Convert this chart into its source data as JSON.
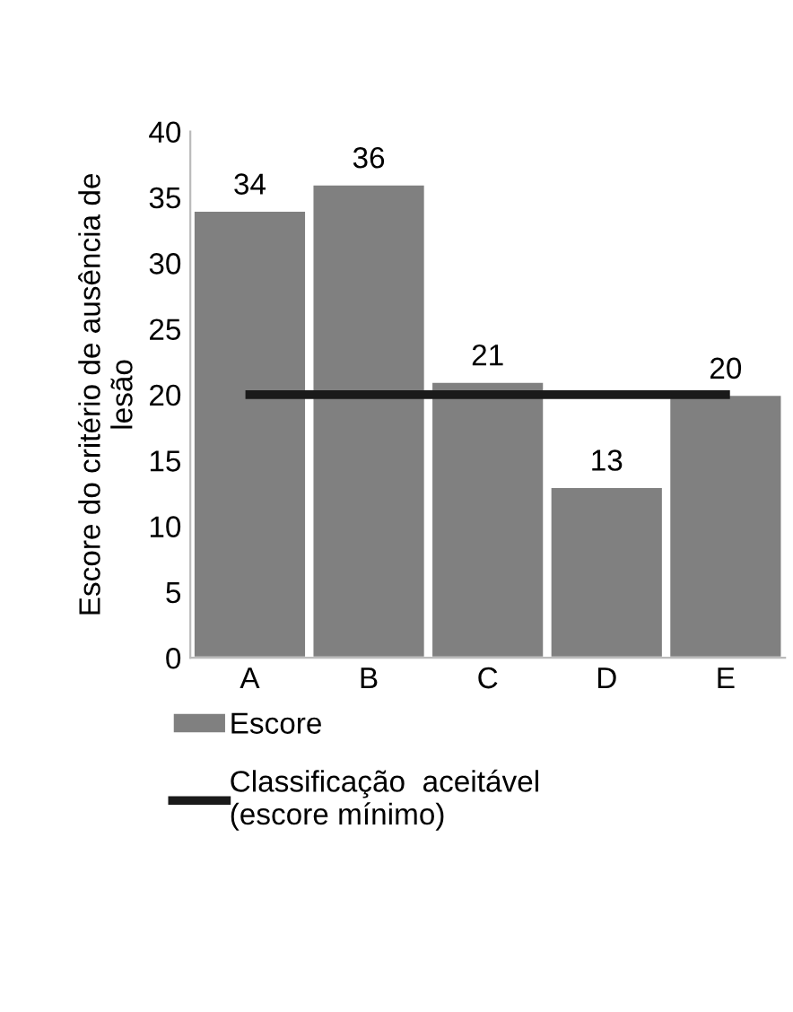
{
  "chart_data": {
    "type": "bar",
    "ylabel": "Escore do critério de ausência de\nlesão",
    "categories": [
      "A",
      "B",
      "C",
      "D",
      "E"
    ],
    "series": [
      {
        "name": "Escore",
        "color": "#808080",
        "values": [
          34,
          36,
          21,
          13,
          20
        ],
        "value_labels": [
          "34",
          "36",
          "21",
          "13",
          "20"
        ]
      },
      {
        "name": "Classificação  aceitável\n(escore mínimo)",
        "type": "line",
        "color": "#1a1a1a",
        "values": [
          20,
          20,
          20,
          20,
          20
        ]
      }
    ],
    "ylim": [
      0,
      40
    ],
    "yticks": [
      0,
      5,
      10,
      15,
      20,
      25,
      30,
      35,
      40
    ],
    "grid": false,
    "legend": "bottom",
    "marker": "none",
    "line_style": "solid"
  }
}
